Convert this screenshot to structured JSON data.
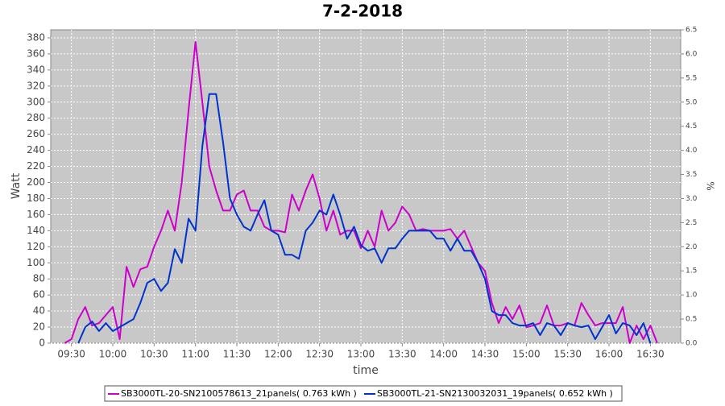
{
  "chart_data": {
    "type": "line",
    "title": "7-2-2018",
    "xlabel": "time",
    "ylabel": "Watt",
    "y2label": "%",
    "x": [
      "09:25",
      "09:30",
      "09:35",
      "09:40",
      "09:45",
      "09:50",
      "09:55",
      "10:00",
      "10:05",
      "10:10",
      "10:15",
      "10:20",
      "10:25",
      "10:30",
      "10:35",
      "10:40",
      "10:45",
      "10:50",
      "10:55",
      "11:00",
      "11:05",
      "11:10",
      "11:15",
      "11:20",
      "11:25",
      "11:30",
      "11:35",
      "11:40",
      "11:45",
      "11:50",
      "11:55",
      "12:00",
      "12:05",
      "12:10",
      "12:15",
      "12:20",
      "12:25",
      "12:30",
      "12:35",
      "12:40",
      "12:45",
      "12:50",
      "12:55",
      "13:00",
      "13:05",
      "13:10",
      "13:15",
      "13:20",
      "13:25",
      "13:30",
      "13:35",
      "13:40",
      "13:45",
      "13:50",
      "13:55",
      "14:00",
      "14:05",
      "14:10",
      "14:15",
      "14:20",
      "14:25",
      "14:30",
      "14:35",
      "14:40",
      "14:45",
      "14:50",
      "14:55",
      "15:00",
      "15:05",
      "15:10",
      "15:15",
      "15:20",
      "15:25",
      "15:30",
      "15:35",
      "15:40",
      "15:45",
      "15:50",
      "15:55",
      "16:00",
      "16:05",
      "16:10",
      "16:15",
      "16:20",
      "16:25",
      "16:30",
      "16:35"
    ],
    "series": [
      {
        "name": "SB3000TL-20-SN2100578613_21panels( 0.763 kWh )",
        "color": "#cc00cc",
        "values": [
          0,
          5,
          30,
          45,
          22,
          25,
          35,
          45,
          5,
          95,
          70,
          92,
          95,
          120,
          140,
          165,
          140,
          200,
          290,
          375,
          300,
          220,
          190,
          165,
          165,
          185,
          190,
          165,
          165,
          145,
          140,
          140,
          138,
          185,
          165,
          190,
          210,
          180,
          140,
          165,
          135,
          140,
          140,
          118,
          140,
          120,
          165,
          140,
          150,
          170,
          160,
          140,
          142,
          140,
          140,
          140,
          142,
          130,
          140,
          120,
          100,
          90,
          50,
          25,
          45,
          30,
          47,
          20,
          22,
          25,
          47,
          22,
          22,
          25,
          22,
          50,
          35,
          22,
          25,
          25,
          25,
          45,
          0,
          22,
          5,
          22,
          0
        ]
      },
      {
        "name": "SB3000TL-21-SN2130032031_19panels( 0.652 kWh )",
        "color": "#0033cc",
        "values": [
          null,
          null,
          0,
          20,
          27,
          15,
          25,
          15,
          20,
          25,
          30,
          50,
          75,
          80,
          65,
          75,
          117,
          100,
          155,
          140,
          245,
          310,
          310,
          250,
          180,
          160,
          145,
          140,
          160,
          178,
          140,
          135,
          110,
          110,
          105,
          140,
          150,
          165,
          160,
          185,
          160,
          130,
          145,
          122,
          115,
          118,
          100,
          118,
          118,
          130,
          140,
          140,
          140,
          140,
          130,
          130,
          115,
          130,
          115,
          115,
          100,
          80,
          40,
          35,
          35,
          25,
          22,
          22,
          25,
          10,
          25,
          22,
          10,
          25,
          22,
          20,
          22,
          5,
          20,
          35,
          12,
          25,
          22,
          10,
          25,
          0,
          null
        ]
      }
    ],
    "xlim": [
      "09:15",
      "16:52"
    ],
    "xticks": [
      "09:30",
      "10:00",
      "10:30",
      "11:00",
      "11:30",
      "12:00",
      "12:30",
      "13:00",
      "13:30",
      "14:00",
      "14:30",
      "15:00",
      "15:30",
      "16:00",
      "16:30"
    ],
    "ylim": [
      0,
      390
    ],
    "yticks": [
      0,
      20,
      40,
      60,
      80,
      100,
      120,
      140,
      160,
      180,
      200,
      220,
      240,
      260,
      280,
      300,
      320,
      340,
      360,
      380
    ],
    "y2lim": [
      0,
      6.5
    ],
    "y2ticks": [
      {
        "value": 0,
        "label": "0.0"
      },
      0.5,
      {
        "value": 1,
        "label": "1.0"
      },
      1.5,
      {
        "value": 2,
        "label": "2.0"
      },
      2.5,
      {
        "value": 3,
        "label": "3.0"
      },
      3.5,
      {
        "value": 4,
        "label": "4.0"
      },
      4.5,
      {
        "value": 5,
        "label": "5.0"
      },
      5.5,
      {
        "value": 6,
        "label": "6.0"
      },
      6.5
    ],
    "grid": true
  }
}
